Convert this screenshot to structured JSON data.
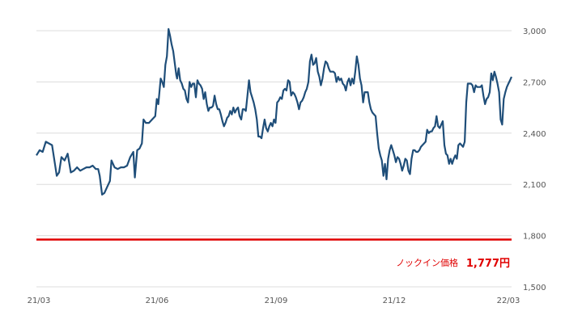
{
  "chart_data": {
    "type": "line",
    "title": "",
    "xlabel": "",
    "ylabel": "",
    "x_tick_labels": [
      "21/03",
      "21/06",
      "21/09",
      "21/12",
      "22/03"
    ],
    "y_ticks": [
      1500,
      1800,
      2100,
      2400,
      2700,
      3000
    ],
    "y_tick_labels": [
      "1,500",
      "1,800",
      "2,100",
      "2,400",
      "2,700",
      "3,000"
    ],
    "ylim": [
      1500,
      3100
    ],
    "grid": "horizontal",
    "series": [
      {
        "color": "#1f4e79",
        "points": [
          [
            0.0,
            2270
          ],
          [
            0.4,
            2300
          ],
          [
            0.8,
            2290
          ],
          [
            1.2,
            2350
          ],
          [
            1.6,
            2340
          ],
          [
            2.0,
            2330
          ],
          [
            2.4,
            2210
          ],
          [
            2.6,
            2150
          ],
          [
            2.9,
            2170
          ],
          [
            3.2,
            2260
          ],
          [
            3.6,
            2240
          ],
          [
            4.0,
            2280
          ],
          [
            4.4,
            2170
          ],
          [
            4.8,
            2180
          ],
          [
            5.2,
            2200
          ],
          [
            5.6,
            2180
          ],
          [
            6.0,
            2190
          ],
          [
            6.4,
            2200
          ],
          [
            6.8,
            2200
          ],
          [
            7.2,
            2210
          ],
          [
            7.6,
            2190
          ],
          [
            7.9,
            2190
          ],
          [
            8.1,
            2150
          ],
          [
            8.4,
            2040
          ],
          [
            8.7,
            2050
          ],
          [
            9.0,
            2080
          ],
          [
            9.4,
            2120
          ],
          [
            9.6,
            2240
          ],
          [
            10.0,
            2200
          ],
          [
            10.4,
            2190
          ],
          [
            10.8,
            2200
          ],
          [
            11.2,
            2200
          ],
          [
            11.6,
            2210
          ],
          [
            12.0,
            2260
          ],
          [
            12.4,
            2290
          ],
          [
            12.6,
            2140
          ],
          [
            12.9,
            2300
          ],
          [
            13.2,
            2310
          ],
          [
            13.5,
            2340
          ],
          [
            13.7,
            2480
          ],
          [
            14.0,
            2460
          ],
          [
            14.4,
            2460
          ],
          [
            14.8,
            2480
          ],
          [
            15.2,
            2500
          ],
          [
            15.4,
            2600
          ],
          [
            15.6,
            2570
          ],
          [
            15.9,
            2720
          ],
          [
            16.1,
            2700
          ],
          [
            16.3,
            2670
          ],
          [
            16.5,
            2800
          ],
          [
            16.7,
            2850
          ],
          [
            16.9,
            3010
          ],
          [
            17.1,
            2970
          ],
          [
            17.3,
            2920
          ],
          [
            17.5,
            2880
          ],
          [
            17.7,
            2810
          ],
          [
            17.9,
            2740
          ],
          [
            18.0,
            2720
          ],
          [
            18.2,
            2780
          ],
          [
            18.4,
            2710
          ],
          [
            18.6,
            2690
          ],
          [
            18.8,
            2660
          ],
          [
            19.0,
            2650
          ],
          [
            19.2,
            2600
          ],
          [
            19.4,
            2580
          ],
          [
            19.6,
            2700
          ],
          [
            19.8,
            2670
          ],
          [
            20.0,
            2690
          ],
          [
            20.2,
            2690
          ],
          [
            20.4,
            2610
          ],
          [
            20.6,
            2710
          ],
          [
            20.8,
            2690
          ],
          [
            21.0,
            2680
          ],
          [
            21.2,
            2660
          ],
          [
            21.4,
            2600
          ],
          [
            21.6,
            2640
          ],
          [
            21.8,
            2570
          ],
          [
            22.0,
            2530
          ],
          [
            22.2,
            2550
          ],
          [
            22.4,
            2550
          ],
          [
            22.6,
            2560
          ],
          [
            22.8,
            2620
          ],
          [
            23.0,
            2570
          ],
          [
            23.2,
            2540
          ],
          [
            23.4,
            2540
          ],
          [
            23.6,
            2510
          ],
          [
            23.8,
            2470
          ],
          [
            24.0,
            2440
          ],
          [
            24.2,
            2460
          ],
          [
            24.4,
            2490
          ],
          [
            24.6,
            2500
          ],
          [
            24.8,
            2530
          ],
          [
            25.0,
            2510
          ],
          [
            25.2,
            2550
          ],
          [
            25.4,
            2520
          ],
          [
            25.6,
            2540
          ],
          [
            25.8,
            2550
          ],
          [
            26.0,
            2500
          ],
          [
            26.2,
            2480
          ],
          [
            26.4,
            2540
          ],
          [
            26.6,
            2540
          ],
          [
            26.8,
            2530
          ],
          [
            27.0,
            2620
          ],
          [
            27.2,
            2710
          ],
          [
            27.4,
            2640
          ],
          [
            27.6,
            2610
          ],
          [
            27.8,
            2580
          ],
          [
            28.0,
            2540
          ],
          [
            28.2,
            2480
          ],
          [
            28.4,
            2380
          ],
          [
            28.6,
            2380
          ],
          [
            28.8,
            2370
          ],
          [
            29.0,
            2430
          ],
          [
            29.2,
            2480
          ],
          [
            29.4,
            2430
          ],
          [
            29.6,
            2410
          ],
          [
            29.8,
            2440
          ],
          [
            30.0,
            2460
          ],
          [
            30.2,
            2440
          ],
          [
            30.4,
            2480
          ],
          [
            30.6,
            2460
          ],
          [
            30.8,
            2580
          ],
          [
            31.0,
            2590
          ],
          [
            31.2,
            2610
          ],
          [
            31.4,
            2600
          ],
          [
            31.6,
            2650
          ],
          [
            31.8,
            2660
          ],
          [
            32.0,
            2650
          ],
          [
            32.2,
            2710
          ],
          [
            32.4,
            2700
          ],
          [
            32.6,
            2620
          ],
          [
            32.8,
            2640
          ],
          [
            33.0,
            2630
          ],
          [
            33.2,
            2610
          ],
          [
            33.4,
            2580
          ],
          [
            33.6,
            2540
          ],
          [
            33.8,
            2580
          ],
          [
            34.0,
            2590
          ],
          [
            34.2,
            2610
          ],
          [
            34.4,
            2640
          ],
          [
            34.6,
            2660
          ],
          [
            34.8,
            2700
          ],
          [
            35.0,
            2820
          ],
          [
            35.2,
            2860
          ],
          [
            35.4,
            2800
          ],
          [
            35.6,
            2810
          ],
          [
            35.8,
            2840
          ],
          [
            36.0,
            2760
          ],
          [
            36.2,
            2730
          ],
          [
            36.4,
            2680
          ],
          [
            36.6,
            2720
          ],
          [
            36.8,
            2780
          ],
          [
            37.0,
            2820
          ],
          [
            37.2,
            2810
          ],
          [
            37.4,
            2780
          ],
          [
            37.6,
            2760
          ],
          [
            37.8,
            2760
          ],
          [
            38.0,
            2760
          ],
          [
            38.2,
            2750
          ],
          [
            38.4,
            2700
          ],
          [
            38.6,
            2730
          ],
          [
            38.8,
            2710
          ],
          [
            39.0,
            2720
          ],
          [
            39.2,
            2690
          ],
          [
            39.4,
            2680
          ],
          [
            39.6,
            2650
          ],
          [
            39.8,
            2700
          ],
          [
            40.0,
            2720
          ],
          [
            40.2,
            2680
          ],
          [
            40.4,
            2720
          ],
          [
            40.6,
            2690
          ],
          [
            40.8,
            2760
          ],
          [
            41.0,
            2850
          ],
          [
            41.2,
            2800
          ],
          [
            41.4,
            2720
          ],
          [
            41.6,
            2680
          ],
          [
            41.8,
            2580
          ],
          [
            42.0,
            2640
          ],
          [
            42.2,
            2640
          ],
          [
            42.4,
            2640
          ],
          [
            42.6,
            2580
          ],
          [
            42.8,
            2540
          ],
          [
            43.0,
            2520
          ],
          [
            43.2,
            2510
          ],
          [
            43.4,
            2500
          ],
          [
            43.6,
            2400
          ],
          [
            43.8,
            2310
          ],
          [
            44.0,
            2270
          ],
          [
            44.2,
            2240
          ],
          [
            44.4,
            2150
          ],
          [
            44.6,
            2220
          ],
          [
            44.8,
            2130
          ],
          [
            45.0,
            2250
          ],
          [
            45.2,
            2300
          ],
          [
            45.4,
            2330
          ],
          [
            45.6,
            2300
          ],
          [
            45.8,
            2270
          ],
          [
            46.0,
            2230
          ],
          [
            46.2,
            2260
          ],
          [
            46.4,
            2250
          ],
          [
            46.6,
            2220
          ],
          [
            46.8,
            2180
          ],
          [
            47.0,
            2210
          ],
          [
            47.2,
            2250
          ],
          [
            47.4,
            2240
          ],
          [
            47.6,
            2180
          ],
          [
            47.8,
            2160
          ],
          [
            48.0,
            2250
          ],
          [
            48.2,
            2300
          ],
          [
            48.4,
            2300
          ],
          [
            48.6,
            2290
          ],
          [
            48.8,
            2290
          ],
          [
            49.0,
            2300
          ],
          [
            49.2,
            2320
          ],
          [
            49.4,
            2330
          ],
          [
            49.6,
            2340
          ],
          [
            49.8,
            2350
          ],
          [
            50.0,
            2420
          ],
          [
            50.2,
            2400
          ],
          [
            50.4,
            2410
          ],
          [
            50.6,
            2410
          ],
          [
            50.8,
            2430
          ],
          [
            51.0,
            2440
          ],
          [
            51.2,
            2500
          ],
          [
            51.4,
            2440
          ],
          [
            51.6,
            2430
          ],
          [
            51.8,
            2450
          ],
          [
            52.0,
            2470
          ],
          [
            52.2,
            2330
          ],
          [
            52.4,
            2280
          ],
          [
            52.6,
            2270
          ],
          [
            52.8,
            2220
          ],
          [
            53.0,
            2250
          ],
          [
            53.2,
            2220
          ],
          [
            53.4,
            2250
          ],
          [
            53.6,
            2270
          ],
          [
            53.8,
            2250
          ],
          [
            54.0,
            2330
          ],
          [
            54.2,
            2340
          ],
          [
            54.4,
            2330
          ],
          [
            54.6,
            2320
          ],
          [
            54.8,
            2350
          ],
          [
            55.0,
            2580
          ],
          [
            55.2,
            2690
          ],
          [
            55.4,
            2690
          ],
          [
            55.6,
            2690
          ],
          [
            55.8,
            2680
          ],
          [
            56.0,
            2640
          ],
          [
            56.2,
            2680
          ],
          [
            56.4,
            2670
          ],
          [
            56.6,
            2670
          ],
          [
            56.8,
            2670
          ],
          [
            57.0,
            2680
          ],
          [
            57.2,
            2620
          ],
          [
            57.4,
            2570
          ],
          [
            57.6,
            2600
          ],
          [
            57.8,
            2610
          ],
          [
            58.0,
            2640
          ],
          [
            58.2,
            2750
          ],
          [
            58.4,
            2710
          ],
          [
            58.6,
            2760
          ],
          [
            58.8,
            2730
          ],
          [
            59.0,
            2690
          ],
          [
            59.2,
            2640
          ],
          [
            59.4,
            2480
          ],
          [
            59.6,
            2450
          ],
          [
            59.8,
            2600
          ],
          [
            60.0,
            2640
          ],
          [
            60.2,
            2670
          ],
          [
            60.4,
            2690
          ],
          [
            60.6,
            2710
          ],
          [
            60.8,
            2730
          ]
        ]
      }
    ],
    "reference_line": {
      "value": 1777,
      "color": "#e00000",
      "label": "ノックイン価格",
      "value_label": "1,777円"
    }
  }
}
